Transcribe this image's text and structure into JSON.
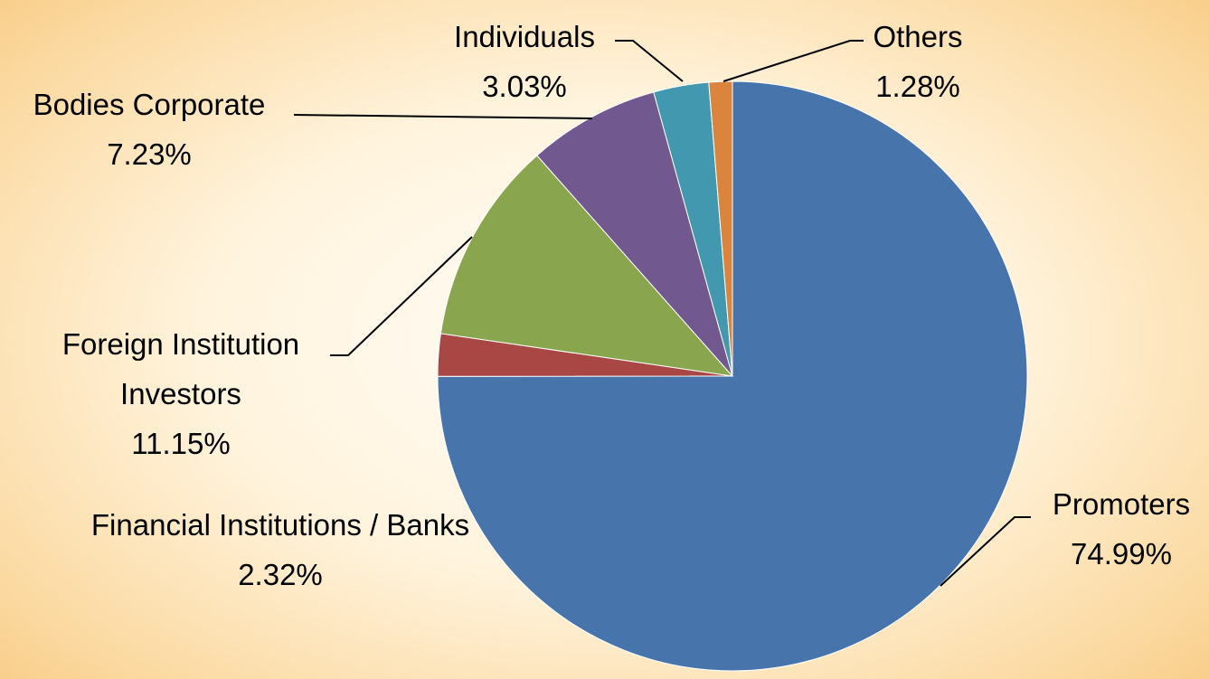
{
  "chart_data": {
    "type": "pie",
    "categories": [
      "Promoters",
      "Financial Institutions / Banks",
      "Foreign Institution Investors",
      "Bodies Corporate",
      "Individuals",
      "Others"
    ],
    "values": [
      74.99,
      2.32,
      11.15,
      7.23,
      3.03,
      1.28
    ],
    "value_labels": [
      "74.99%",
      "2.32%",
      "11.15%",
      "7.23%",
      "3.03%",
      "1.28%"
    ],
    "colors": [
      "#4774aa",
      "#a94744",
      "#89a54e",
      "#71588f",
      "#4198af",
      "#db843d"
    ]
  }
}
